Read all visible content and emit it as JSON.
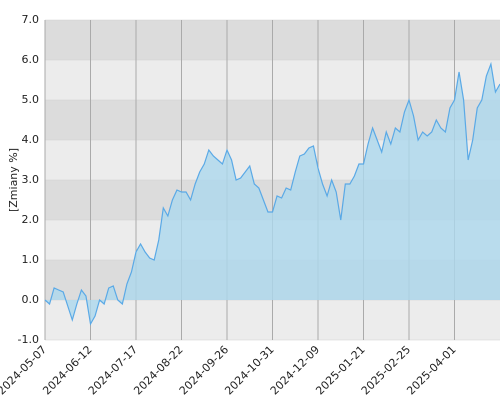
{
  "chart_data": {
    "type": "area",
    "y_label": "[Zmiany %]",
    "categories": [
      "2024-05-07",
      null,
      null,
      null,
      null,
      null,
      null,
      null,
      null,
      null,
      "2024-06-12",
      null,
      null,
      null,
      null,
      null,
      null,
      null,
      null,
      null,
      "2024-07-17",
      null,
      null,
      null,
      null,
      null,
      null,
      null,
      null,
      null,
      "2024-08-22",
      null,
      null,
      null,
      null,
      null,
      null,
      null,
      null,
      null,
      "2024-09-26",
      null,
      null,
      null,
      null,
      null,
      null,
      null,
      null,
      null,
      "2024-10-31",
      null,
      null,
      null,
      null,
      null,
      null,
      null,
      null,
      null,
      "2024-12-09",
      null,
      null,
      null,
      null,
      null,
      null,
      null,
      null,
      null,
      "2025-01-21",
      null,
      null,
      null,
      null,
      null,
      null,
      null,
      null,
      null,
      "2025-02-25",
      null,
      null,
      null,
      null,
      null,
      null,
      null,
      null,
      null,
      "2025-04-01",
      null,
      null,
      null,
      null,
      null,
      null,
      null,
      null,
      null,
      null
    ],
    "values": [
      0.0,
      -0.1,
      0.3,
      0.25,
      0.2,
      -0.15,
      -0.5,
      -0.1,
      0.25,
      0.1,
      -0.6,
      -0.4,
      0.0,
      -0.1,
      0.3,
      0.35,
      0.0,
      -0.1,
      0.4,
      0.7,
      1.2,
      1.4,
      1.2,
      1.05,
      1.0,
      1.5,
      2.3,
      2.1,
      2.5,
      2.75,
      2.7,
      2.7,
      2.5,
      2.9,
      3.2,
      3.4,
      3.75,
      3.6,
      3.5,
      3.4,
      3.75,
      3.5,
      3.0,
      3.05,
      3.2,
      3.35,
      2.9,
      2.8,
      2.5,
      2.2,
      2.2,
      2.6,
      2.55,
      2.8,
      2.75,
      3.2,
      3.6,
      3.65,
      3.8,
      3.85,
      3.3,
      2.9,
      2.6,
      3.0,
      2.7,
      2.0,
      2.9,
      2.9,
      3.1,
      3.4,
      3.4,
      3.9,
      4.3,
      4.0,
      3.7,
      4.2,
      3.9,
      4.3,
      4.2,
      4.7,
      5.0,
      4.6,
      4.0,
      4.2,
      4.1,
      4.2,
      4.5,
      4.3,
      4.2,
      4.8,
      5.0,
      5.7,
      5.0,
      3.5,
      4.0,
      4.8,
      5.0,
      5.6,
      5.9,
      5.2,
      5.4
    ],
    "color": "#5aa9e6",
    "fill": "#add8ed",
    "ylim": [
      -1,
      7
    ],
    "yticks": [
      {
        "value": -1,
        "label": "-1.0"
      },
      {
        "value": 0,
        "label": "0.0"
      },
      {
        "value": 1,
        "label": "1.0"
      },
      {
        "value": 2,
        "label": "2.0"
      },
      {
        "value": 3,
        "label": "3.0"
      },
      {
        "value": 4,
        "label": "4.0"
      },
      {
        "value": 5,
        "label": "5.0"
      },
      {
        "value": 6,
        "label": "6.0"
      },
      {
        "value": 7,
        "label": "7.0"
      }
    ],
    "grid": true
  }
}
